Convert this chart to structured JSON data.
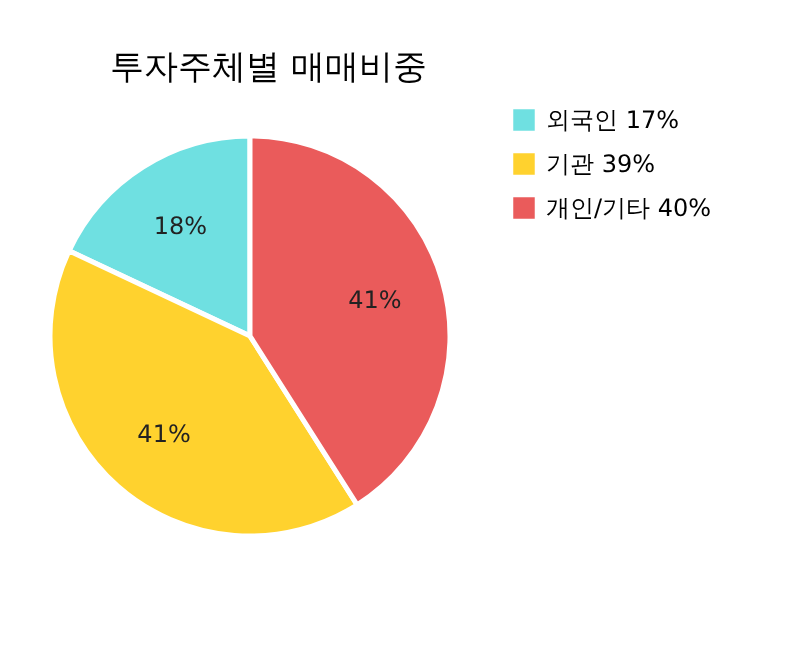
{
  "chart_data": {
    "type": "pie",
    "title": "투자주체별 매매비중",
    "categories": [
      "외국인 17%",
      "기관 39%",
      "개인/기타 40%"
    ],
    "values": [
      18,
      41,
      41
    ],
    "colors": [
      "#6fe0e1",
      "#ffd22e",
      "#ea5b5b"
    ],
    "value_labels": [
      "18%",
      "41%",
      "41%"
    ],
    "legend": "top right"
  }
}
